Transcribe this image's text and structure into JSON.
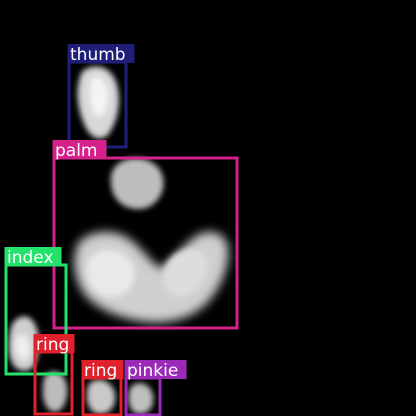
{
  "image": {
    "background_color": "#000000"
  },
  "detections": [
    {
      "label": "thumb",
      "color": "#1f1f7a"
    },
    {
      "label": "palm",
      "color": "#d6218c"
    },
    {
      "label": "index",
      "color": "#22e26a"
    },
    {
      "label": "ring",
      "color": "#e0202a"
    },
    {
      "label": "ring",
      "color": "#e0202a"
    },
    {
      "label": "pinkie",
      "color": "#9b2ab8"
    }
  ]
}
